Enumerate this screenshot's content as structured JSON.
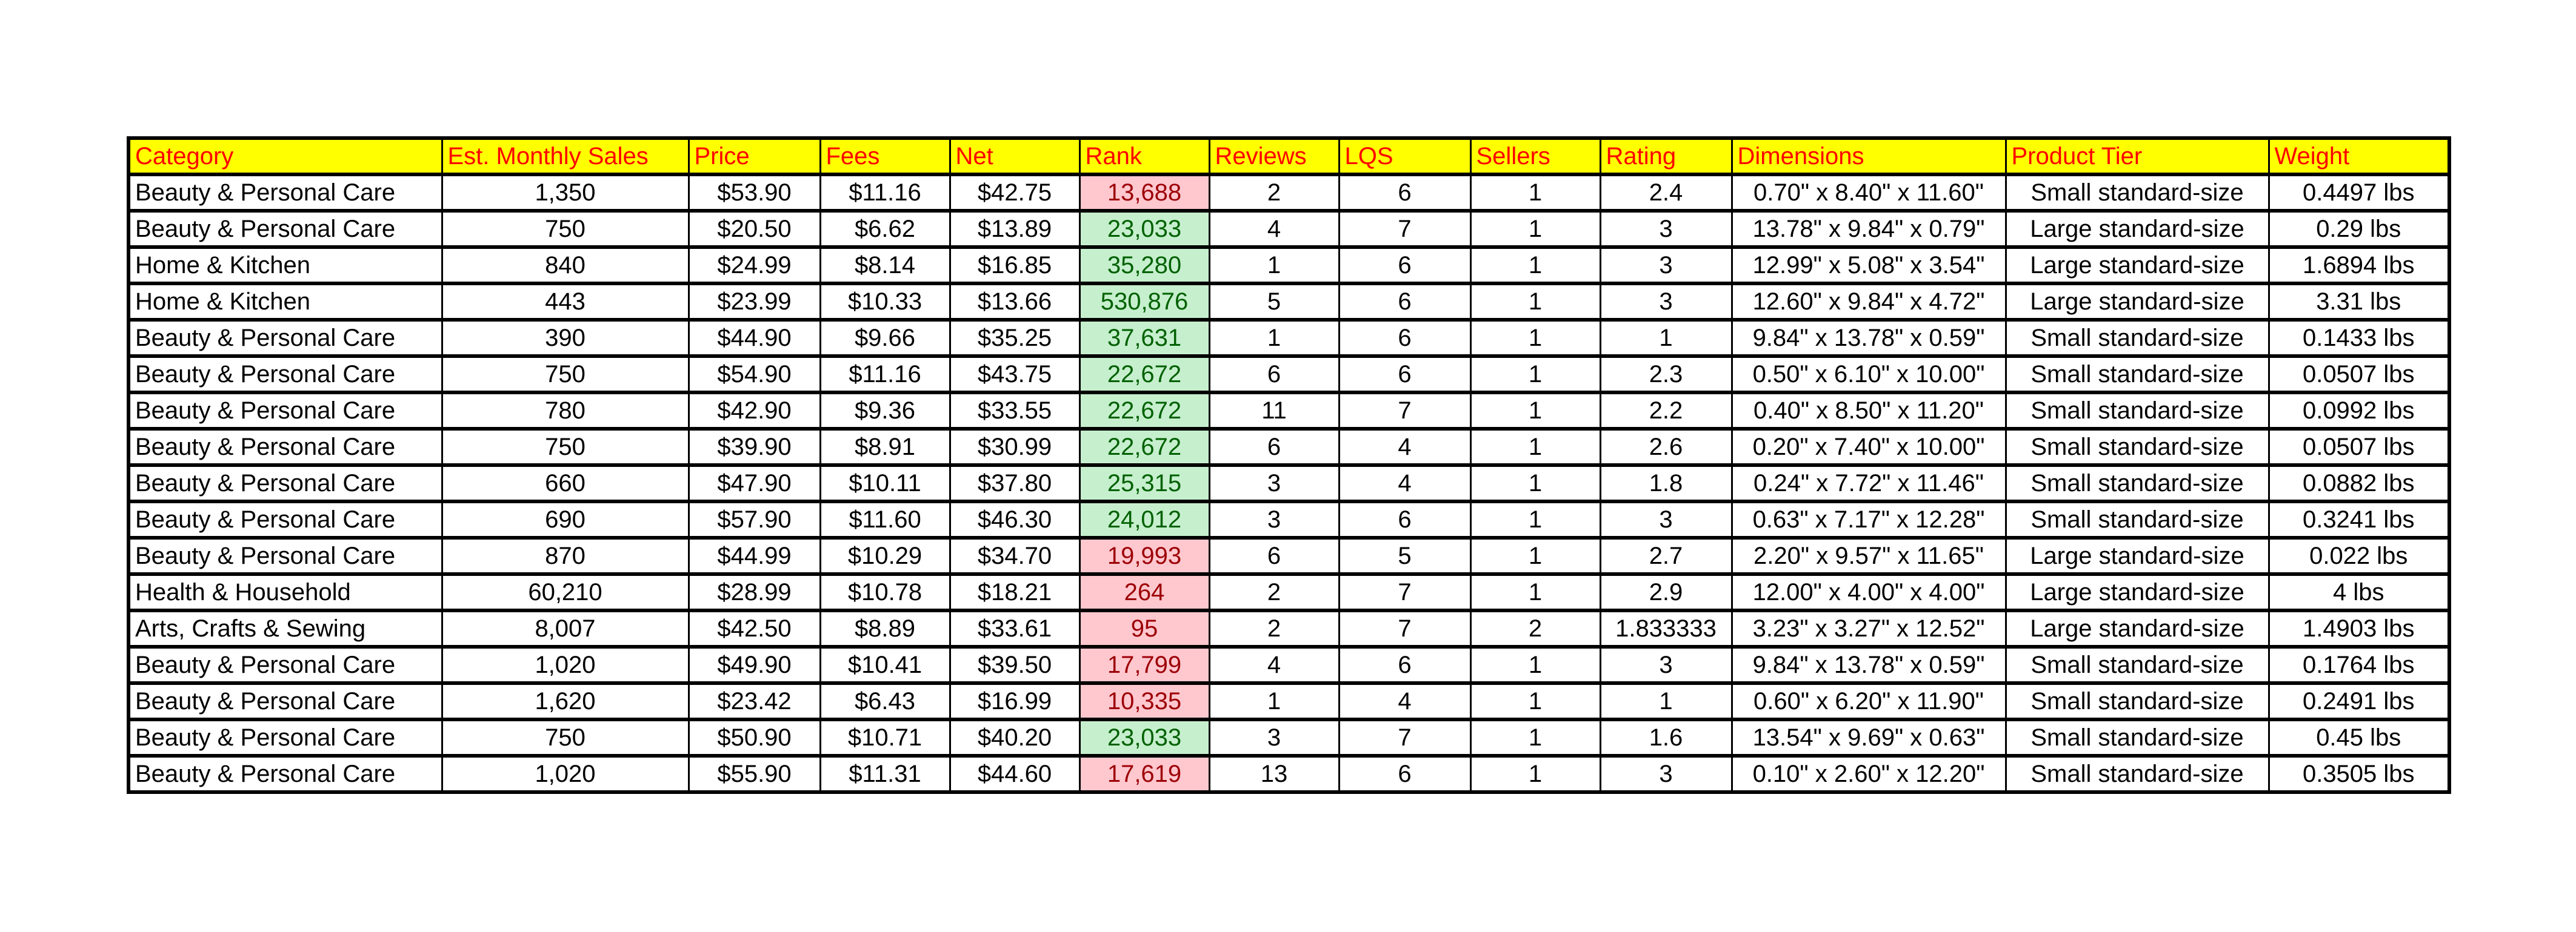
{
  "colors": {
    "header_bg": "#ffff00",
    "header_text": "#ff0000",
    "rank_good_bg": "#c6efce",
    "rank_good_text": "#006100",
    "rank_bad_bg": "#ffc7ce",
    "rank_bad_text": "#9c0006"
  },
  "columns": [
    "Category",
    "Est. Monthly Sales",
    "Price",
    "Fees",
    "Net",
    "Rank",
    "Reviews",
    "LQS",
    "Sellers",
    "Rating",
    "Dimensions",
    "Product Tier",
    "Weight"
  ],
  "rows": [
    {
      "cells": [
        "Beauty & Personal Care",
        "1,350",
        "$53.90",
        "$11.16",
        "$42.75",
        "13,688",
        "2",
        "6",
        "1",
        "2.4",
        "0.70\" x 8.40\" x 11.60\"",
        "Small standard-size",
        "0.4497 lbs"
      ],
      "rank_highlight": "bad"
    },
    {
      "cells": [
        "Beauty & Personal Care",
        "750",
        "$20.50",
        "$6.62",
        "$13.89",
        "23,033",
        "4",
        "7",
        "1",
        "3",
        "13.78\" x 9.84\" x 0.79\"",
        "Large standard-size",
        "0.29 lbs"
      ],
      "rank_highlight": "good"
    },
    {
      "cells": [
        "Home & Kitchen",
        "840",
        "$24.99",
        "$8.14",
        "$16.85",
        "35,280",
        "1",
        "6",
        "1",
        "3",
        "12.99\" x 5.08\" x 3.54\"",
        "Large standard-size",
        "1.6894 lbs"
      ],
      "rank_highlight": "good"
    },
    {
      "cells": [
        "Home & Kitchen",
        "443",
        "$23.99",
        "$10.33",
        "$13.66",
        "530,876",
        "5",
        "6",
        "1",
        "3",
        "12.60\" x 9.84\" x 4.72\"",
        "Large standard-size",
        "3.31 lbs"
      ],
      "rank_highlight": "good"
    },
    {
      "cells": [
        "Beauty & Personal Care",
        "390",
        "$44.90",
        "$9.66",
        "$35.25",
        "37,631",
        "1",
        "6",
        "1",
        "1",
        "9.84\" x 13.78\" x 0.59\"",
        "Small standard-size",
        "0.1433 lbs"
      ],
      "rank_highlight": "good"
    },
    {
      "cells": [
        "Beauty & Personal Care",
        "750",
        "$54.90",
        "$11.16",
        "$43.75",
        "22,672",
        "6",
        "6",
        "1",
        "2.3",
        "0.50\" x 6.10\" x 10.00\"",
        "Small standard-size",
        "0.0507 lbs"
      ],
      "rank_highlight": "good"
    },
    {
      "cells": [
        "Beauty & Personal Care",
        "780",
        "$42.90",
        "$9.36",
        "$33.55",
        "22,672",
        "11",
        "7",
        "1",
        "2.2",
        "0.40\" x 8.50\" x 11.20\"",
        "Small standard-size",
        "0.0992 lbs"
      ],
      "rank_highlight": "good"
    },
    {
      "cells": [
        "Beauty & Personal Care",
        "750",
        "$39.90",
        "$8.91",
        "$30.99",
        "22,672",
        "6",
        "4",
        "1",
        "2.6",
        "0.20\" x 7.40\" x 10.00\"",
        "Small standard-size",
        "0.0507 lbs"
      ],
      "rank_highlight": "good"
    },
    {
      "cells": [
        "Beauty & Personal Care",
        "660",
        "$47.90",
        "$10.11",
        "$37.80",
        "25,315",
        "3",
        "4",
        "1",
        "1.8",
        "0.24\" x 7.72\" x 11.46\"",
        "Small standard-size",
        "0.0882 lbs"
      ],
      "rank_highlight": "good"
    },
    {
      "cells": [
        "Beauty & Personal Care",
        "690",
        "$57.90",
        "$11.60",
        "$46.30",
        "24,012",
        "3",
        "6",
        "1",
        "3",
        "0.63\" x 7.17\" x 12.28\"",
        "Small standard-size",
        "0.3241 lbs"
      ],
      "rank_highlight": "good"
    },
    {
      "cells": [
        "Beauty & Personal Care",
        "870",
        "$44.99",
        "$10.29",
        "$34.70",
        "19,993",
        "6",
        "5",
        "1",
        "2.7",
        "2.20\" x 9.57\" x 11.65\"",
        "Large standard-size",
        "0.022 lbs"
      ],
      "rank_highlight": "bad"
    },
    {
      "cells": [
        "Health & Household",
        "60,210",
        "$28.99",
        "$10.78",
        "$18.21",
        "264",
        "2",
        "7",
        "1",
        "2.9",
        "12.00\" x 4.00\" x 4.00\"",
        "Large standard-size",
        "4 lbs"
      ],
      "rank_highlight": "bad"
    },
    {
      "cells": [
        "Arts, Crafts & Sewing",
        "8,007",
        "$42.50",
        "$8.89",
        "$33.61",
        "95",
        "2",
        "7",
        "2",
        "1.833333",
        "3.23\" x 3.27\" x 12.52\"",
        "Large standard-size",
        "1.4903 lbs"
      ],
      "rank_highlight": "bad"
    },
    {
      "cells": [
        "Beauty & Personal Care",
        "1,020",
        "$49.90",
        "$10.41",
        "$39.50",
        "17,799",
        "4",
        "6",
        "1",
        "3",
        "9.84\" x 13.78\" x 0.59\"",
        "Small standard-size",
        "0.1764 lbs"
      ],
      "rank_highlight": "bad"
    },
    {
      "cells": [
        "Beauty & Personal Care",
        "1,620",
        "$23.42",
        "$6.43",
        "$16.99",
        "10,335",
        "1",
        "4",
        "1",
        "1",
        "0.60\" x 6.20\" x 11.90\"",
        "Small standard-size",
        "0.2491 lbs"
      ],
      "rank_highlight": "bad"
    },
    {
      "cells": [
        "Beauty & Personal Care",
        "750",
        "$50.90",
        "$10.71",
        "$40.20",
        "23,033",
        "3",
        "7",
        "1",
        "1.6",
        "13.54\" x 9.69\" x 0.63\"",
        "Small standard-size",
        "0.45 lbs"
      ],
      "rank_highlight": "good"
    },
    {
      "cells": [
        "Beauty & Personal Care",
        "1,020",
        "$55.90",
        "$11.31",
        "$44.60",
        "17,619",
        "13",
        "6",
        "1",
        "3",
        "0.10\" x 2.60\" x 12.20\"",
        "Small standard-size",
        "0.3505 lbs"
      ],
      "rank_highlight": "bad"
    }
  ]
}
